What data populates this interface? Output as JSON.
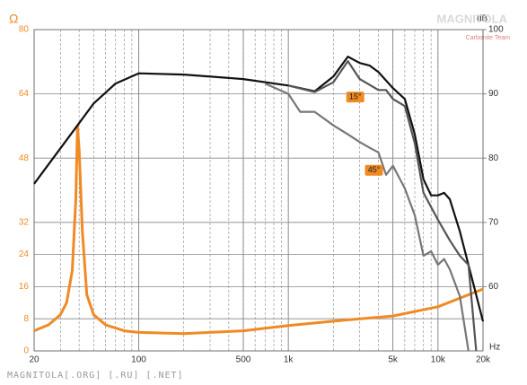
{
  "chart_data": {
    "type": "line",
    "y_label": "Ω",
    "y2_label": "dB",
    "x_label": "Hz",
    "watermark": "MAGNITOLA",
    "watermark_sub": "Carbonite Team",
    "footer": "MAGNITOLA[.ORG] [.RU] [.NET]",
    "log_x": true,
    "grid": true,
    "xlim": [
      20,
      20000
    ],
    "xticks": [
      20,
      100,
      500,
      {
        "value": 1000,
        "label": "1k"
      },
      {
        "value": 5000,
        "label": "5k"
      },
      {
        "value": 10000,
        "label": "10k"
      },
      {
        "value": 20000,
        "label": "20k"
      }
    ],
    "ylim": [
      0,
      80
    ],
    "yticks": [
      0,
      8,
      16,
      24,
      32,
      48,
      64,
      80
    ],
    "y2lim": [
      50,
      100
    ],
    "y2ticks": [
      60,
      70,
      80,
      90,
      100
    ],
    "series": [
      {
        "color": "#f08a24",
        "axis": "y",
        "x": [
          20,
          25,
          30,
          33,
          36,
          38,
          39,
          40,
          42,
          45,
          50,
          60,
          80,
          100,
          200,
          500,
          1000,
          2000,
          5000,
          10000,
          20000
        ],
        "values": [
          5,
          6.5,
          9,
          12,
          20,
          38,
          56,
          50,
          30,
          14,
          9,
          6.5,
          5,
          4.6,
          4.3,
          5,
          6.3,
          7.4,
          8.7,
          11,
          15.4
        ]
      },
      {
        "color": "#111111",
        "axis": "y2",
        "x": [
          20,
          41,
          50,
          70,
          100,
          200,
          500,
          1000,
          1500,
          2000,
          2500,
          3000,
          3500,
          4000,
          5000,
          6000,
          7000,
          8000,
          9000,
          10000,
          11000,
          12000,
          14000,
          20000
        ],
        "values": [
          76,
          85.8,
          88.5,
          91.6,
          93.2,
          93,
          92.3,
          91.3,
          90.4,
          92.7,
          95.8,
          94.8,
          94.4,
          93.4,
          90.9,
          89.2,
          83.7,
          76.7,
          74.2,
          74.2,
          74.6,
          73.6,
          68.6,
          54.6
        ]
      },
      {
        "name": "15°",
        "color": "#555555",
        "axis": "y2",
        "x": [
          1000,
          1500,
          2000,
          2500,
          3000,
          4000,
          4500,
          5000,
          6000,
          7000,
          8000,
          10000,
          12000,
          14000,
          16000,
          18000
        ],
        "values": [
          91.3,
          90.3,
          91.8,
          95.1,
          92.3,
          90.6,
          90.6,
          89.2,
          88.1,
          82.3,
          74.6,
          70.4,
          67.2,
          64.8,
          63.4,
          50
        ]
      },
      {
        "name": "45°",
        "color": "#777777",
        "axis": "y2",
        "x": [
          700,
          1000,
          1200,
          1500,
          2000,
          2500,
          3000,
          3500,
          4000,
          4500,
          5000,
          6000,
          7000,
          8000,
          9000,
          10000,
          11000,
          12000,
          14000,
          16000
        ],
        "values": [
          91.6,
          90,
          87.2,
          87.2,
          85.1,
          83.7,
          82.5,
          81.6,
          80.9,
          77.4,
          78.8,
          75.3,
          71.1,
          64.8,
          65.5,
          63.4,
          64.3,
          62.7,
          58.5,
          50
        ]
      }
    ]
  }
}
